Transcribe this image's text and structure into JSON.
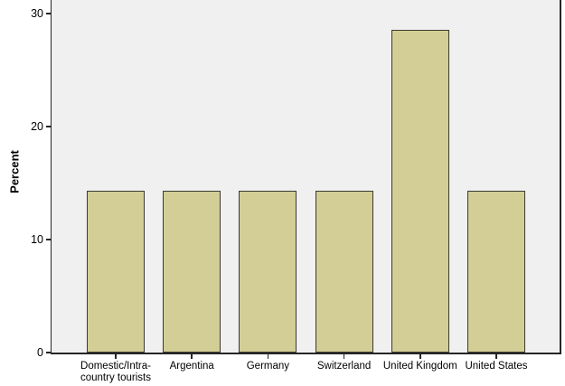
{
  "chart_data": {
    "type": "bar",
    "title": "",
    "xlabel": "",
    "ylabel": "Percent",
    "categories": [
      "Domestic/Intra-\ncountry tourists",
      "Argentina",
      "Germany",
      "Switzerland",
      "United Kingdom",
      "United States"
    ],
    "values": [
      14.3,
      14.3,
      14.3,
      14.3,
      28.6,
      14.3
    ],
    "yticks": [
      0,
      10,
      20,
      30
    ],
    "ylim": [
      0,
      31.2
    ],
    "grid": false,
    "legend": "none",
    "colors": {
      "bar_fill": "#d3ce95",
      "bar_border": "#3a3a30",
      "plot_background": "#f0f0f0",
      "axis": "#262626",
      "text": "#000000",
      "page_background": "#ffffff"
    }
  }
}
